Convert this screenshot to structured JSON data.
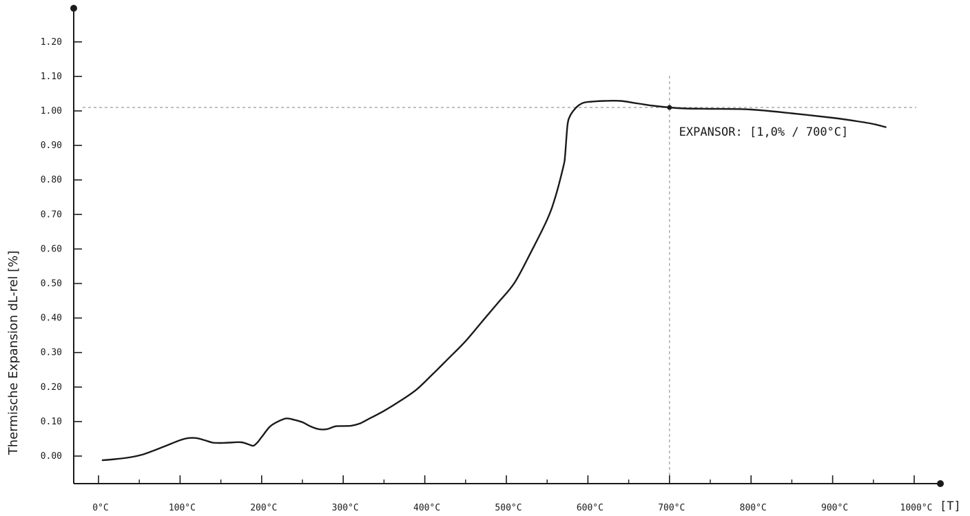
{
  "chart_data": {
    "type": "line",
    "ylabel": "Thermische Expansion  dL-rel [%]",
    "x_unit_label": "[T]",
    "xlim": [
      -33,
      1000
    ],
    "ylim": [
      -0.08,
      1.3
    ],
    "x_ticks": [
      0,
      100,
      200,
      300,
      400,
      500,
      600,
      700,
      800,
      900,
      1000
    ],
    "x_tick_labels": [
      "0°C",
      "100°C",
      "200°C",
      "300°C",
      "400°C",
      "500°C",
      "600°C",
      "700°C",
      "800°C",
      "900°C",
      "1000°C"
    ],
    "x_minor_step": 50,
    "y_ticks": [
      0,
      0.1,
      0.2,
      0.3,
      0.4,
      0.5,
      0.6,
      0.7,
      0.8,
      0.9,
      1.0,
      1.1,
      1.2
    ],
    "y_tick_labels": [
      "0.00",
      "0.10",
      "0.20",
      "0.30",
      "0.40",
      "0.50",
      "0.60",
      "0.70",
      "0.80",
      "0.90",
      "1.00",
      "1.10",
      "1.20"
    ],
    "series": [
      {
        "color": "#1a1a1a",
        "x": [
          5,
          20,
          40,
          55,
          70,
          85,
          100,
          110,
          120,
          130,
          140,
          150,
          160,
          175,
          185,
          190,
          195,
          200,
          210,
          220,
          230,
          240,
          250,
          260,
          270,
          280,
          290,
          300,
          310,
          320,
          330,
          350,
          370,
          390,
          410,
          430,
          450,
          470,
          490,
          510,
          530,
          550,
          560,
          570,
          572,
          575,
          578,
          582,
          588,
          595,
          605,
          620,
          640,
          660,
          680,
          700,
          720,
          750,
          800,
          850,
          900,
          930,
          950,
          965
        ],
        "y": [
          -0.012,
          -0.009,
          -0.003,
          0.005,
          0.018,
          0.032,
          0.046,
          0.052,
          0.052,
          0.046,
          0.039,
          0.038,
          0.039,
          0.04,
          0.033,
          0.03,
          0.04,
          0.055,
          0.085,
          0.1,
          0.109,
          0.105,
          0.098,
          0.086,
          0.078,
          0.078,
          0.086,
          0.087,
          0.088,
          0.094,
          0.106,
          0.131,
          0.16,
          0.193,
          0.238,
          0.285,
          0.333,
          0.389,
          0.445,
          0.502,
          0.59,
          0.685,
          0.75,
          0.84,
          0.87,
          0.96,
          0.985,
          1.0,
          1.015,
          1.024,
          1.027,
          1.029,
          1.029,
          1.022,
          1.015,
          1.01,
          1.007,
          1.006,
          1.004,
          0.993,
          0.98,
          0.97,
          0.962,
          0.953
        ]
      }
    ],
    "reference_lines": {
      "x": 700,
      "y": 1.01,
      "style": "dashed",
      "color": "#999999"
    },
    "marker_point": {
      "x": 700,
      "y": 1.01
    },
    "annotation": {
      "text": "EXPANSOR: [1,0% / 700°C]",
      "x": 710,
      "y": 0.94
    }
  }
}
